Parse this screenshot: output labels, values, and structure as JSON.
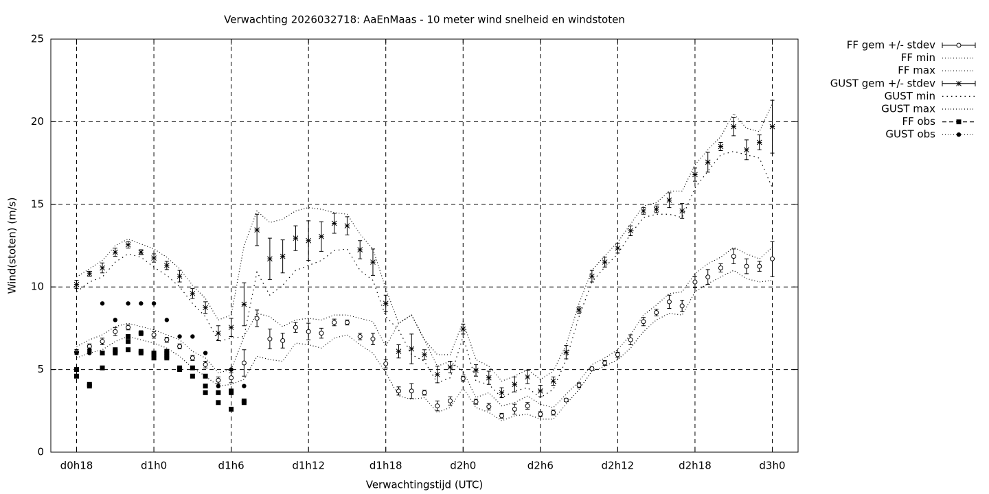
{
  "chart_data": {
    "type": "line",
    "title": "Verwachting 2026032718: AaEnMaas - 10 meter wind snelheid en windstoten",
    "xlabel": "Verwachtingstijd (UTC)",
    "ylabel": "Wind(stoten) (m/s)",
    "xlim": [
      16,
      74
    ],
    "xticks": [
      {
        "value": 18,
        "label": "d0h18"
      },
      {
        "value": 24,
        "label": "d1h0"
      },
      {
        "value": 30,
        "label": "d1h6"
      },
      {
        "value": 36,
        "label": "d1h12"
      },
      {
        "value": 42,
        "label": "d1h18"
      },
      {
        "value": 48,
        "label": "d2h0"
      },
      {
        "value": 54,
        "label": "d2h6"
      },
      {
        "value": 60,
        "label": "d2h12"
      },
      {
        "value": 66,
        "label": "d2h18"
      },
      {
        "value": 72,
        "label": "d3h0"
      }
    ],
    "ylim": [
      0,
      25
    ],
    "yticks": [
      0,
      5,
      10,
      15,
      20,
      25
    ],
    "grid": true,
    "legend": "outside-top-right",
    "x": [
      18,
      19,
      20,
      21,
      22,
      23,
      24,
      25,
      26,
      27,
      28,
      29,
      30,
      31,
      32,
      33,
      34,
      35,
      36,
      37,
      38,
      39,
      40,
      41,
      42,
      43,
      44,
      45,
      46,
      47,
      48,
      49,
      50,
      51,
      52,
      53,
      54,
      55,
      56,
      57,
      58,
      59,
      60,
      61,
      62,
      63,
      64,
      65,
      66,
      67,
      68,
      69,
      70,
      71,
      72
    ],
    "series": [
      {
        "name": "FF gem +/- stdev",
        "color": "#000000",
        "style": "errorbars",
        "marker": "circle-open",
        "values": [
          6.06,
          6.4,
          6.7,
          7.3,
          7.55,
          7.2,
          7.1,
          6.8,
          6.4,
          5.7,
          5.3,
          4.35,
          4.5,
          5.4,
          8.1,
          6.85,
          6.75,
          7.55,
          7.3,
          7.2,
          7.85,
          7.85,
          7.0,
          6.85,
          5.35,
          3.7,
          3.7,
          3.6,
          2.8,
          3.1,
          4.45,
          3.05,
          2.75,
          2.2,
          2.6,
          2.8,
          2.3,
          2.4,
          3.15,
          4.05,
          5.05,
          5.4,
          5.9,
          6.8,
          7.9,
          8.45,
          9.1,
          8.85,
          10.3,
          10.6,
          11.15,
          11.85,
          11.25,
          11.25,
          11.7
        ],
        "errors": [
          0.15,
          0.15,
          0.2,
          0.25,
          0.15,
          0.15,
          0.2,
          0.15,
          0.15,
          0.15,
          0.2,
          0.2,
          0.3,
          0.8,
          0.5,
          0.6,
          0.45,
          0.3,
          0.5,
          0.3,
          0.2,
          0.15,
          0.2,
          0.35,
          0.25,
          0.25,
          0.45,
          0.15,
          0.3,
          0.25,
          0.15,
          0.15,
          0.2,
          0.15,
          0.3,
          0.2,
          0.15,
          0.15,
          0.1,
          0.15,
          0.1,
          0.15,
          0.15,
          0.3,
          0.25,
          0.2,
          0.4,
          0.35,
          0.35,
          0.45,
          0.25,
          0.45,
          0.45,
          0.3,
          1.05
        ]
      },
      {
        "name": "FF min",
        "color": "#000000",
        "style": "line",
        "dash": "1 3",
        "values": [
          5.7,
          6.0,
          6.2,
          6.7,
          7.0,
          6.8,
          6.6,
          6.3,
          5.8,
          5.1,
          4.6,
          4.0,
          4.1,
          4.4,
          5.8,
          5.6,
          5.5,
          6.6,
          6.5,
          6.3,
          6.9,
          7.1,
          6.5,
          6.0,
          4.8,
          3.4,
          3.2,
          3.3,
          2.4,
          2.7,
          3.9,
          2.7,
          2.4,
          1.9,
          2.2,
          2.3,
          2.0,
          2.0,
          2.9,
          3.8,
          4.9,
          5.2,
          5.6,
          6.3,
          7.3,
          8.0,
          8.4,
          8.3,
          9.7,
          10.2,
          10.6,
          11.0,
          10.5,
          10.3,
          10.4
        ]
      },
      {
        "name": "FF max",
        "color": "#000000",
        "style": "line",
        "dash": "1 3",
        "values": [
          6.4,
          6.8,
          7.1,
          7.6,
          7.8,
          7.6,
          7.4,
          7.1,
          6.8,
          6.1,
          5.7,
          4.8,
          5.0,
          7.0,
          8.4,
          8.2,
          7.6,
          8.0,
          8.1,
          8.0,
          8.3,
          8.3,
          8.1,
          7.9,
          6.4,
          7.8,
          8.3,
          6.8,
          5.2,
          5.5,
          4.9,
          3.3,
          3.6,
          2.8,
          3.0,
          3.4,
          2.9,
          2.7,
          3.5,
          4.3,
          5.3,
          5.7,
          6.2,
          7.1,
          8.3,
          8.9,
          9.6,
          9.7,
          10.8,
          11.4,
          11.8,
          12.4,
          12.0,
          11.7,
          12.4
        ]
      },
      {
        "name": "GUST gem +/- stdev",
        "color": "#000000",
        "style": "errorbars",
        "marker": "star",
        "values": [
          10.15,
          10.8,
          11.15,
          12.1,
          12.55,
          12.1,
          11.75,
          11.3,
          10.65,
          9.6,
          8.75,
          7.2,
          7.55,
          8.95,
          13.45,
          11.7,
          11.85,
          12.95,
          12.8,
          13.05,
          13.85,
          13.7,
          12.25,
          11.5,
          9.0,
          6.1,
          6.25,
          5.9,
          4.7,
          5.15,
          7.45,
          4.95,
          4.5,
          3.6,
          4.1,
          4.55,
          3.7,
          4.3,
          6.05,
          8.6,
          10.65,
          11.5,
          12.35,
          13.4,
          14.6,
          14.7,
          15.25,
          14.6,
          16.8,
          17.55,
          18.5,
          19.7,
          18.3,
          18.75,
          19.7
        ],
        "errors": [
          0.25,
          0.15,
          0.3,
          0.25,
          0.2,
          0.15,
          0.25,
          0.25,
          0.35,
          0.3,
          0.35,
          0.45,
          0.55,
          1.3,
          0.95,
          1.25,
          1.0,
          0.75,
          1.2,
          0.9,
          0.6,
          0.55,
          0.55,
          0.8,
          0.5,
          0.4,
          0.9,
          0.3,
          0.5,
          0.35,
          0.3,
          0.35,
          0.4,
          0.3,
          0.45,
          0.4,
          0.35,
          0.25,
          0.4,
          0.2,
          0.35,
          0.3,
          0.3,
          0.3,
          0.2,
          0.2,
          0.45,
          0.45,
          0.4,
          0.6,
          0.25,
          0.55,
          0.6,
          0.45,
          1.6
        ]
      },
      {
        "name": "GUST min",
        "color": "#000000",
        "style": "line",
        "dash": "1.5 5",
        "values": [
          9.7,
          10.3,
          10.6,
          11.5,
          12.0,
          11.8,
          11.2,
          10.7,
          10.0,
          9.0,
          8.2,
          6.7,
          6.9,
          7.0,
          10.9,
          9.5,
          10.1,
          11.0,
          11.3,
          11.6,
          12.2,
          12.3,
          11.0,
          10.4,
          8.2,
          7.4,
          5.9,
          5.5,
          4.2,
          4.5,
          7.0,
          4.3,
          4.1,
          3.3,
          3.7,
          3.9,
          3.3,
          3.8,
          5.6,
          8.2,
          10.3,
          11.2,
          12.0,
          13.2,
          14.2,
          14.4,
          14.4,
          14.2,
          16.0,
          17.0,
          18.0,
          18.2,
          18.0,
          17.8,
          16.0
        ]
      },
      {
        "name": "GUST max",
        "color": "#000000",
        "style": "line",
        "dash": "1 3",
        "values": [
          10.6,
          11.1,
          11.6,
          12.5,
          12.9,
          12.6,
          12.3,
          11.8,
          11.1,
          10.1,
          9.3,
          8.0,
          8.3,
          12.5,
          14.6,
          13.9,
          14.1,
          14.6,
          14.8,
          14.7,
          14.5,
          14.4,
          13.2,
          12.3,
          9.9,
          7.8,
          8.3,
          6.8,
          5.9,
          5.9,
          7.9,
          5.6,
          5.2,
          4.3,
          4.6,
          5.0,
          4.4,
          4.9,
          6.5,
          9.0,
          11.0,
          11.9,
          12.7,
          13.8,
          14.9,
          15.1,
          15.8,
          15.8,
          17.4,
          18.3,
          19.1,
          20.5,
          19.6,
          19.4,
          21.1
        ]
      },
      {
        "name": "FF obs",
        "color": "#000000",
        "style": "points",
        "marker": "square",
        "dash": "6 4",
        "x": [
          18,
          18,
          19,
          19,
          20,
          20,
          21,
          21,
          21,
          22,
          22,
          22,
          23,
          23,
          23,
          24,
          24,
          24,
          25,
          25,
          25,
          25,
          26,
          26,
          27,
          27,
          28,
          28,
          28,
          29,
          29,
          30,
          30,
          30,
          31,
          31
        ],
        "values": [
          5,
          4.6,
          4.1,
          4,
          6,
          5.1,
          6.2,
          6.1,
          6,
          7,
          6.7,
          6.2,
          7.2,
          6.1,
          6,
          6,
          5.9,
          5.7,
          6.1,
          6,
          5.8,
          5.7,
          5.1,
          5,
          5.1,
          4.6,
          4.6,
          4,
          3.6,
          3.6,
          3,
          3.7,
          3.6,
          2.6,
          3.1,
          3
        ]
      },
      {
        "name": "GUST obs",
        "color": "#000000",
        "style": "points",
        "marker": "circle",
        "dash": "1 3",
        "x": [
          18,
          19,
          19,
          19,
          20,
          21,
          22,
          23,
          24,
          25,
          26,
          27,
          28,
          29,
          30,
          31
        ],
        "values": [
          6,
          6.2,
          6.1,
          6,
          9,
          8,
          9,
          9,
          9,
          8,
          7,
          7,
          6,
          4,
          5,
          4
        ]
      }
    ]
  }
}
